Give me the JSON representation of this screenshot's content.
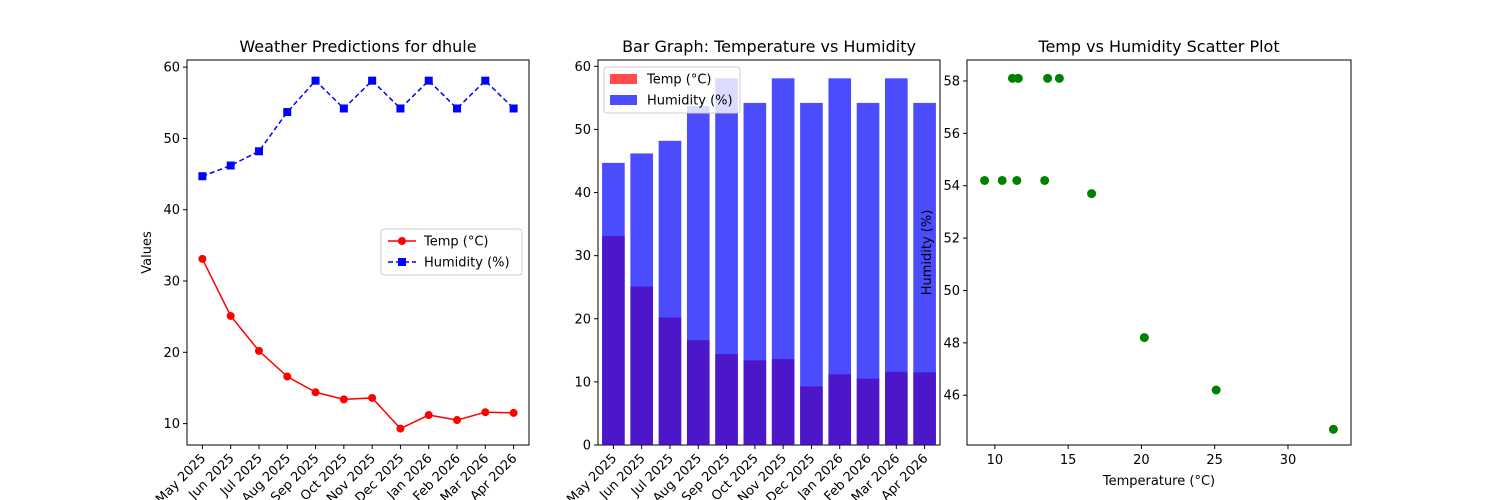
{
  "chart_data": [
    {
      "type": "line",
      "title": "Weather Predictions for dhule",
      "xlabel": "",
      "ylabel": "Values",
      "categories": [
        "May 2025",
        "Jun 2025",
        "Jul 2025",
        "Aug 2025",
        "Sep 2025",
        "Oct 2025",
        "Nov 2025",
        "Dec 2025",
        "Jan 2026",
        "Feb 2026",
        "Mar 2026",
        "Apr 2026"
      ],
      "ylim": [
        7,
        61
      ],
      "yticks": [
        10,
        20,
        30,
        40,
        50,
        60
      ],
      "legend_position": "center-right",
      "series": [
        {
          "name": "Temp (°C)",
          "color": "#ff0000",
          "marker": "circle",
          "linestyle": "solid",
          "values": [
            33.1,
            25.1,
            20.2,
            16.6,
            14.4,
            13.4,
            13.6,
            9.3,
            11.2,
            10.5,
            11.6,
            11.5
          ]
        },
        {
          "name": "Humidity (%)",
          "color": "#0000ff",
          "marker": "square",
          "linestyle": "dashed",
          "values": [
            44.7,
            46.2,
            48.2,
            53.7,
            58.1,
            54.2,
            58.1,
            54.2,
            58.1,
            54.2,
            58.1,
            54.2
          ]
        }
      ]
    },
    {
      "type": "bar",
      "title": "Bar Graph: Temperature vs Humidity",
      "xlabel": "",
      "ylabel": "",
      "categories": [
        "May 2025",
        "Jun 2025",
        "Jul 2025",
        "Aug 2025",
        "Sep 2025",
        "Oct 2025",
        "Nov 2025",
        "Dec 2025",
        "Jan 2026",
        "Feb 2026",
        "Mar 2026",
        "Apr 2026"
      ],
      "ylim": [
        0,
        61
      ],
      "yticks": [
        0,
        10,
        20,
        30,
        40,
        50,
        60
      ],
      "legend_position": "upper-left",
      "series": [
        {
          "name": "Temp (°C)",
          "color": "#ff0000",
          "alpha": 0.7,
          "values": [
            33.1,
            25.1,
            20.2,
            16.6,
            14.4,
            13.4,
            13.6,
            9.3,
            11.2,
            10.5,
            11.6,
            11.5
          ]
        },
        {
          "name": "Humidity (%)",
          "color": "#0000ff",
          "alpha": 0.7,
          "values": [
            44.7,
            46.2,
            48.2,
            53.7,
            58.1,
            54.2,
            58.1,
            54.2,
            58.1,
            54.2,
            58.1,
            54.2
          ]
        }
      ]
    },
    {
      "type": "scatter",
      "title": "Temp vs Humidity Scatter Plot",
      "xlabel": "Temperature (°C)",
      "ylabel": "Humidity (%)",
      "xlim": [
        8.1,
        34.3
      ],
      "ylim": [
        44.1,
        58.8
      ],
      "xticks": [
        10,
        15,
        20,
        25,
        30
      ],
      "yticks": [
        46,
        48,
        50,
        52,
        54,
        56,
        58
      ],
      "color": "#008000",
      "points": [
        {
          "x": 33.1,
          "y": 44.7
        },
        {
          "x": 25.1,
          "y": 46.2
        },
        {
          "x": 20.2,
          "y": 48.2
        },
        {
          "x": 16.6,
          "y": 53.7
        },
        {
          "x": 14.4,
          "y": 58.1
        },
        {
          "x": 13.4,
          "y": 54.2
        },
        {
          "x": 13.6,
          "y": 58.1
        },
        {
          "x": 9.3,
          "y": 54.2
        },
        {
          "x": 11.2,
          "y": 58.1
        },
        {
          "x": 10.5,
          "y": 54.2
        },
        {
          "x": 11.6,
          "y": 58.1
        },
        {
          "x": 11.5,
          "y": 54.2
        }
      ]
    }
  ]
}
